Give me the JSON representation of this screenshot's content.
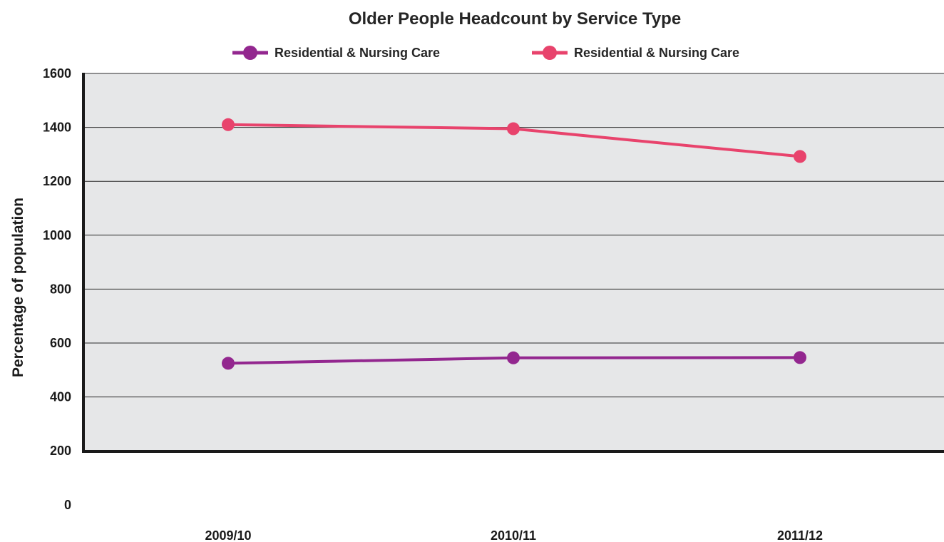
{
  "chart_data": {
    "type": "line",
    "title": "Older People Headcount by Service Type",
    "xlabel": "",
    "ylabel": "Percentage of population",
    "categories": [
      "2009/10",
      "2010/11",
      "2011/12"
    ],
    "ylim": [
      0,
      1600
    ],
    "yticks": [
      0,
      200,
      400,
      600,
      800,
      1000,
      1200,
      1400,
      1600
    ],
    "grid": true,
    "legend_position": "top",
    "plot_background": "#e6e7e8",
    "series": [
      {
        "name": "Residential & Nursing Care",
        "color": "#93278f",
        "values": [
          525,
          545,
          546
        ]
      },
      {
        "name": "Residential & Nursing Care",
        "color": "#e8436c",
        "values": [
          1410,
          1395,
          1292
        ]
      }
    ]
  }
}
